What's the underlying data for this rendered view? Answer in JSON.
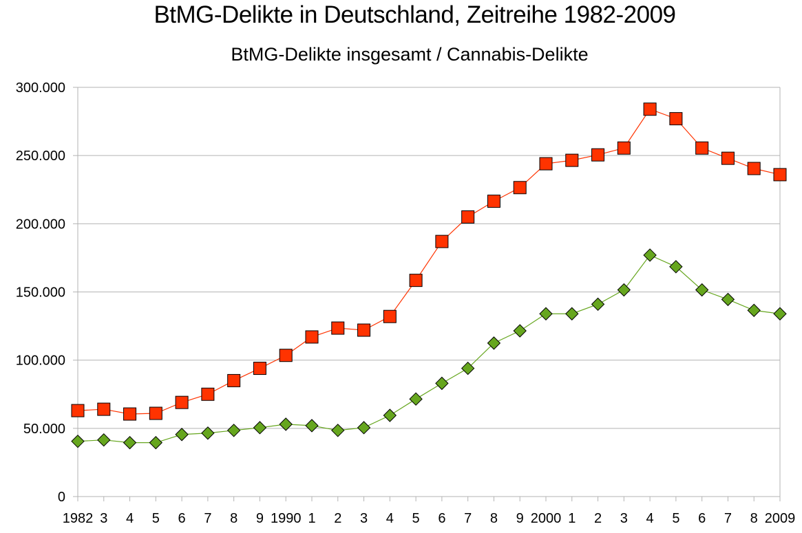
{
  "chart_data": {
    "type": "line",
    "title": "BtMG-Delikte in Deutschland, Zeitreihe 1982-2009",
    "subtitle": "BtMG-Delikte insgesamt / Cannabis-Delikte",
    "xlabel": "",
    "ylabel": "",
    "ylim": [
      0,
      300000
    ],
    "y_ticks": [
      0,
      50000,
      100000,
      150000,
      200000,
      250000,
      300000
    ],
    "y_tick_labels": [
      "0",
      "50.000",
      "100.000",
      "150.000",
      "200.000",
      "250.000",
      "300.000"
    ],
    "categories": [
      "1982",
      "3",
      "4",
      "5",
      "6",
      "7",
      "8",
      "9",
      "1990",
      "1",
      "2",
      "3",
      "4",
      "5",
      "6",
      "7",
      "8",
      "9",
      "2000",
      "1",
      "2",
      "3",
      "4",
      "5",
      "6",
      "7",
      "8",
      "2009"
    ],
    "grid": "horizontal",
    "legend": "none",
    "series": [
      {
        "color": "#ff3300",
        "marker": "square",
        "values": [
          63000,
          64000,
          60500,
          61000,
          69000,
          75000,
          85000,
          94000,
          103500,
          117000,
          123500,
          122000,
          132000,
          158500,
          187000,
          205000,
          216500,
          226500,
          244000,
          246500,
          250500,
          255500,
          284000,
          277000,
          255500,
          248000,
          240500,
          236000
        ]
      },
      {
        "color": "#66a61e",
        "marker": "diamond",
        "values": [
          40500,
          41500,
          39500,
          39500,
          45500,
          46500,
          48500,
          50500,
          53000,
          52000,
          48500,
          50500,
          59500,
          71500,
          83000,
          94000,
          112500,
          121500,
          134000,
          134000,
          141000,
          151500,
          177000,
          168500,
          151500,
          144500,
          136500,
          134000
        ]
      }
    ]
  }
}
